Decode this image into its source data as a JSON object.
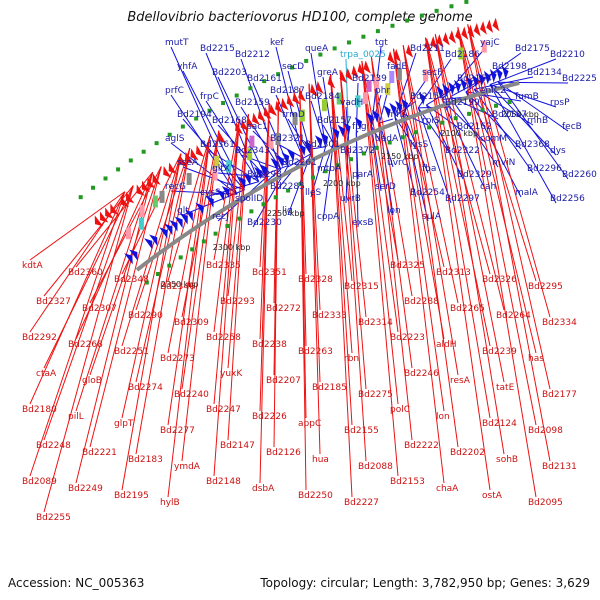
{
  "title": "Bdellovibrio bacteriovorus HD100, complete genome",
  "footer": {
    "accession": "Accession: NC_005363",
    "summary": "Topology: circular; Length: 3,782,950 bp; Genes: 3,629"
  },
  "kbp_markers": [
    "2350 kbp",
    "2300 kbp",
    "2250 kbp",
    "2200 kbp",
    "2150 kbp",
    "2100 kbp",
    "2050 kbp"
  ],
  "colors": {
    "forward": "#1111dd",
    "reverse": "#ee1111",
    "trna": "#22aacc",
    "backbone": "#888888"
  },
  "forward_labels": [
    "mutT",
    "Bd2215",
    "Bd2212",
    "kef",
    "queA",
    "trpa_0025",
    "tgt",
    "Bd2211",
    "Bd2186",
    "yajC",
    "Bd2175",
    "Bd2210",
    "yhfA",
    "Bd2203",
    "Bd2161",
    "secD",
    "greA",
    "Bd2139",
    "fadE",
    "secF",
    "Bd2164",
    "Bd2198",
    "Bd2134",
    "Bd2225",
    "prfC",
    "frpC",
    "Bd2159",
    "Bd2187",
    "Bd2184",
    "vadH",
    "phr",
    "Bd2154",
    "Bd2199",
    "enlC2",
    "fumB",
    "rpsP",
    "Bd2194",
    "Bd2168",
    "sac1",
    "trmD",
    "Bd2157",
    "fpg",
    "rnhA",
    "rplS",
    "Bd2162",
    "Bd2137",
    "rnhB",
    "fecB",
    "aglS",
    "Bd2361",
    "Bd2343",
    "Bd2321",
    "Bd2301",
    "Bd2372",
    "dedA",
    "lysS",
    "Bd2322",
    "comM",
    "Bd2368",
    "dys",
    "sseA",
    "gltX",
    "Bd2298",
    "Bd2261",
    "mtbA",
    "parA",
    "uvrC",
    "fba",
    "Bd2329",
    "mviN",
    "Bd2296",
    "Bd2260",
    "recG",
    "cysS",
    "spoIID",
    "Bd2285",
    "lleS",
    "uvrB",
    "serD",
    "Bd2254",
    "Bd2297",
    "cah",
    "malA",
    "Bd2256",
    "glt",
    "recJ",
    "Bd2230",
    "lig",
    "copA",
    "exsB",
    "lon",
    "sulA"
  ],
  "reverse_labels": [
    "kdtA",
    "Bd2360",
    "Bd2348",
    "Bd2346",
    "Bd2335",
    "Bd2351",
    "Bd2328",
    "Bd2315",
    "Bd2325",
    "Bd2313",
    "Bd2326",
    "Bd2295",
    "Bd2327",
    "Bd2307",
    "Bd2290",
    "Bd2309",
    "Bd2293",
    "Bd2272",
    "Bd2333",
    "Bd2314",
    "Bd2288",
    "Bd2265",
    "Bd2264",
    "Bd2334",
    "Bd2292",
    "Bd2268",
    "Bd2251",
    "Bd2273",
    "Bd2258",
    "Bd2238",
    "Bd2263",
    "rbn",
    "Bd2223",
    "aldH",
    "Bd2239",
    "has",
    "ctaA",
    "gloB",
    "Bd2274",
    "Bd2240",
    "yuxK",
    "Bd2207",
    "Bd2185",
    "Bd2275",
    "Bd2246",
    "resA",
    "tatE",
    "Bd2177",
    "Bd2180",
    "pilL",
    "glpT",
    "Bd2277",
    "Bd2247",
    "Bd2226",
    "appC",
    "Bd2155",
    "polC",
    "lon",
    "Bd2124",
    "Bd2098",
    "Bd2248",
    "Bd2221",
    "Bd2183",
    "ymdA",
    "Bd2147",
    "Bd2126",
    "hua",
    "Bd2088",
    "Bd2222",
    "Bd2202",
    "sohB",
    "Bd2131",
    "Bd2089",
    "Bd2249",
    "Bd2195",
    "hylB",
    "Bd2148",
    "dsbA",
    "Bd2250",
    "Bd2227",
    "Bd2153",
    "chaA",
    "ostA",
    "Bd2095",
    "Bd2255"
  ]
}
